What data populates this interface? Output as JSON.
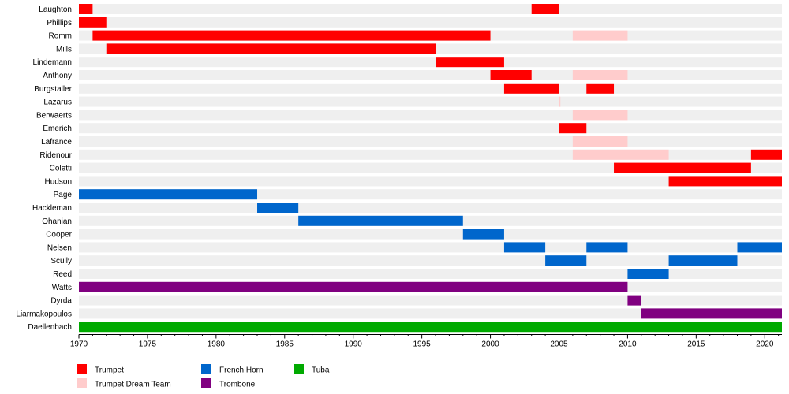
{
  "chart_data": {
    "type": "timeline",
    "x_axis": {
      "min": 1970,
      "max": 2021.25,
      "ticks": [
        "1970",
        "1975",
        "1980",
        "1985",
        "1990",
        "1995",
        "2000",
        "2005",
        "2010",
        "2015",
        "2020"
      ]
    },
    "rows": [
      "Laughton",
      "Phillips",
      "Romm",
      "Mills",
      "Lindemann",
      "Anthony",
      "Burgstaller",
      "Lazarus",
      "Berwaerts",
      "Emerich",
      "Lafrance",
      "Ridenour",
      "Coletti",
      "Hudson",
      "Page",
      "Hackleman",
      "Ohanian",
      "Cooper",
      "Nelsen",
      "Scully",
      "Reed",
      "Watts",
      "Dyrda",
      "Liarmakopoulos",
      "Daellenbach"
    ],
    "categories": [
      {
        "key": "trumpet",
        "label": "Trumpet",
        "color": "#ff0000"
      },
      {
        "key": "dream",
        "label": "Trumpet Dream Team",
        "color": "#ffcccc"
      },
      {
        "key": "horn",
        "label": "French Horn",
        "color": "#0066cc"
      },
      {
        "key": "trombone",
        "label": "Trombone",
        "color": "#800080"
      },
      {
        "key": "tuba",
        "label": "Tuba",
        "color": "#00aa00"
      }
    ],
    "legend_position": "bottom-left",
    "grid": "row-stripes",
    "bars": [
      {
        "row": "Laughton",
        "category": "trumpet",
        "start": 1970,
        "end": 1971
      },
      {
        "row": "Laughton",
        "category": "trumpet",
        "start": 2003,
        "end": 2005
      },
      {
        "row": "Phillips",
        "category": "trumpet",
        "start": 1970,
        "end": 1972
      },
      {
        "row": "Romm",
        "category": "trumpet",
        "start": 1971,
        "end": 2000
      },
      {
        "row": "Romm",
        "category": "dream",
        "start": 2006,
        "end": 2010
      },
      {
        "row": "Mills",
        "category": "trumpet",
        "start": 1972,
        "end": 1996
      },
      {
        "row": "Lindemann",
        "category": "trumpet",
        "start": 1996,
        "end": 2001
      },
      {
        "row": "Anthony",
        "category": "trumpet",
        "start": 2000,
        "end": 2003
      },
      {
        "row": "Anthony",
        "category": "dream",
        "start": 2006,
        "end": 2010
      },
      {
        "row": "Burgstaller",
        "category": "trumpet",
        "start": 2001,
        "end": 2005
      },
      {
        "row": "Burgstaller",
        "category": "trumpet",
        "start": 2007,
        "end": 2009
      },
      {
        "row": "Lazarus",
        "category": "dream",
        "start": 2005,
        "end": 2005.1
      },
      {
        "row": "Berwaerts",
        "category": "dream",
        "start": 2006,
        "end": 2010
      },
      {
        "row": "Emerich",
        "category": "trumpet",
        "start": 2005,
        "end": 2007
      },
      {
        "row": "Lafrance",
        "category": "dream",
        "start": 2006,
        "end": 2010
      },
      {
        "row": "Ridenour",
        "category": "dream",
        "start": 2006,
        "end": 2013
      },
      {
        "row": "Ridenour",
        "category": "trumpet",
        "start": 2019,
        "end": 2021.25
      },
      {
        "row": "Coletti",
        "category": "trumpet",
        "start": 2009,
        "end": 2019
      },
      {
        "row": "Hudson",
        "category": "trumpet",
        "start": 2013,
        "end": 2021.25
      },
      {
        "row": "Page",
        "category": "horn",
        "start": 1970,
        "end": 1983
      },
      {
        "row": "Hackleman",
        "category": "horn",
        "start": 1983,
        "end": 1986
      },
      {
        "row": "Ohanian",
        "category": "horn",
        "start": 1986,
        "end": 1998
      },
      {
        "row": "Cooper",
        "category": "horn",
        "start": 1998,
        "end": 2001
      },
      {
        "row": "Nelsen",
        "category": "horn",
        "start": 2001,
        "end": 2004
      },
      {
        "row": "Nelsen",
        "category": "horn",
        "start": 2007,
        "end": 2010
      },
      {
        "row": "Nelsen",
        "category": "horn",
        "start": 2018,
        "end": 2021.25
      },
      {
        "row": "Scully",
        "category": "horn",
        "start": 2004,
        "end": 2007
      },
      {
        "row": "Scully",
        "category": "horn",
        "start": 2013,
        "end": 2018
      },
      {
        "row": "Reed",
        "category": "horn",
        "start": 2010,
        "end": 2013
      },
      {
        "row": "Watts",
        "category": "trombone",
        "start": 1970,
        "end": 2010
      },
      {
        "row": "Dyrda",
        "category": "trombone",
        "start": 2010,
        "end": 2011
      },
      {
        "row": "Liarmakopoulos",
        "category": "trombone",
        "start": 2011,
        "end": 2021.25
      },
      {
        "row": "Daellenbach",
        "category": "tuba",
        "start": 1970,
        "end": 2021.25
      }
    ]
  }
}
